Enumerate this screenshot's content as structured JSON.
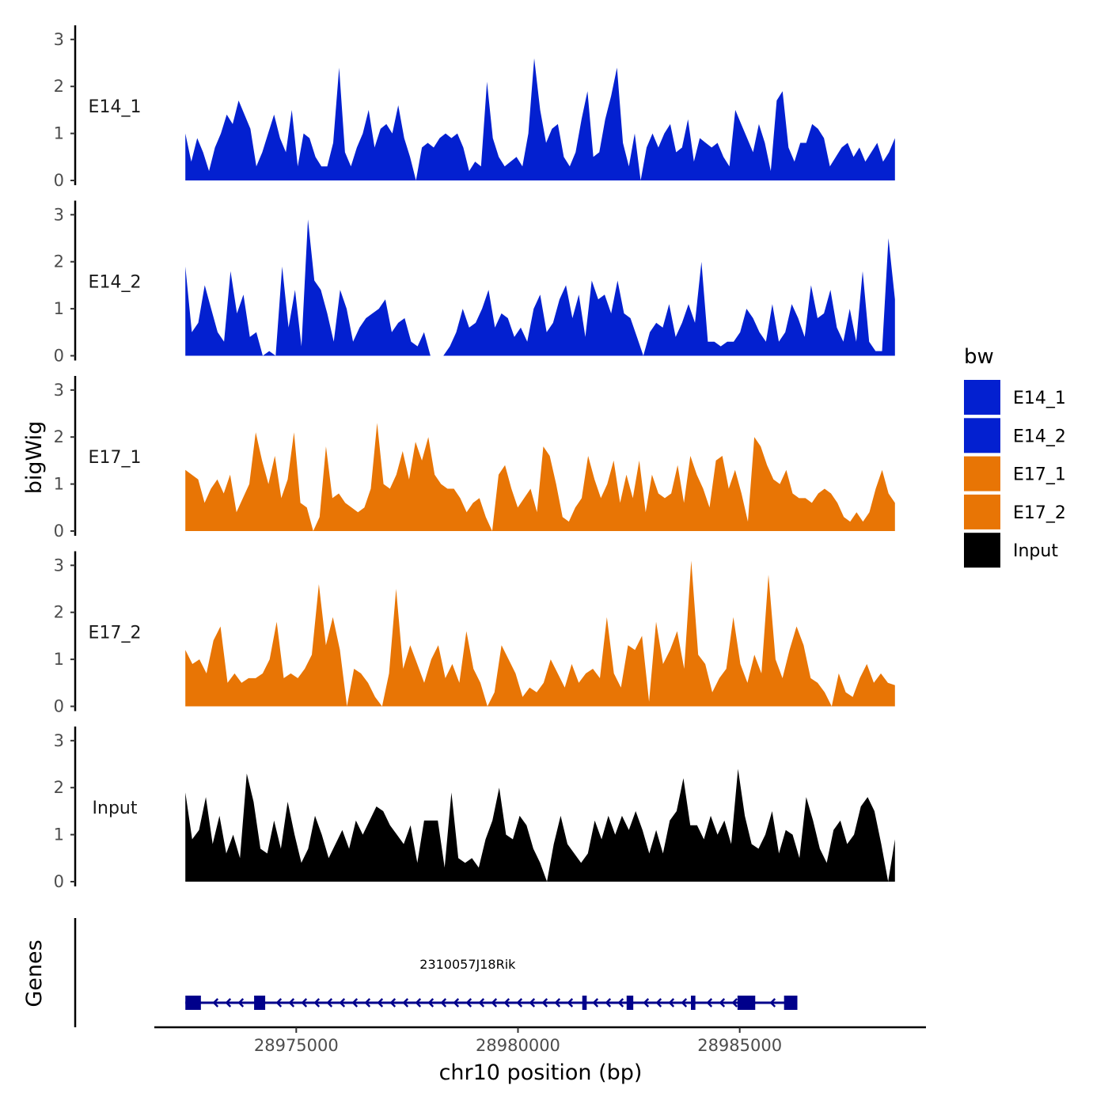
{
  "chart_data": {
    "type": "area",
    "ylabel": "bigWig",
    "xlabel": "chr10 position (bp)",
    "genes_label": "Genes",
    "ylim": [
      0,
      3.3
    ],
    "yticks": [
      0,
      1,
      2,
      3
    ],
    "xlim": [
      28971800,
      28989200
    ],
    "xticks": [
      28975000,
      28980000,
      28985000
    ],
    "xtick_labels": [
      "28975000",
      "28980000",
      "28985000"
    ],
    "series_x_range": [
      28972500,
      28988500
    ],
    "legend": {
      "title": "bw",
      "entries": [
        {
          "label": "E14_1",
          "color": "#0320d0"
        },
        {
          "label": "E14_2",
          "color": "#0320d0"
        },
        {
          "label": "E17_1",
          "color": "#e87505"
        },
        {
          "label": "E17_2",
          "color": "#e87505"
        },
        {
          "label": "Input",
          "color": "#000000"
        }
      ]
    },
    "series": [
      {
        "name": "E14_1",
        "color": "#0320d0",
        "values": [
          1.0,
          0.4,
          0.9,
          0.6,
          0.2,
          0.7,
          1.0,
          1.4,
          1.2,
          1.7,
          1.4,
          1.1,
          0.3,
          0.6,
          1.0,
          1.4,
          0.9,
          0.6,
          1.5,
          0.3,
          1.0,
          0.9,
          0.5,
          0.3,
          0.3,
          0.8,
          2.4,
          0.6,
          0.3,
          0.7,
          1.0,
          1.5,
          0.7,
          1.1,
          1.2,
          1.0,
          1.6,
          0.9,
          0.5,
          0.0,
          0.7,
          0.8,
          0.7,
          0.9,
          1.0,
          0.9,
          1.0,
          0.7,
          0.2,
          0.4,
          0.3,
          2.1,
          0.9,
          0.5,
          0.3,
          0.4,
          0.5,
          0.3,
          1.0,
          2.6,
          1.5,
          0.8,
          1.1,
          1.2,
          0.5,
          0.3,
          0.6,
          1.3,
          1.9,
          0.5,
          0.6,
          1.3,
          1.8,
          2.4,
          0.8,
          0.3,
          1.0,
          0.0,
          0.7,
          1.0,
          0.7,
          1.0,
          1.2,
          0.6,
          0.7,
          1.3,
          0.4,
          0.9,
          0.8,
          0.7,
          0.8,
          0.5,
          0.3,
          1.5,
          1.2,
          0.9,
          0.6,
          1.2,
          0.8,
          0.2,
          1.7,
          1.9,
          0.7,
          0.4,
          0.8,
          0.8,
          1.2,
          1.1,
          0.9,
          0.3,
          0.5,
          0.7,
          0.8,
          0.5,
          0.7,
          0.4,
          0.6,
          0.8,
          0.4,
          0.6,
          0.9
        ]
      },
      {
        "name": "E14_2",
        "color": "#0320d0",
        "values": [
          1.9,
          0.5,
          0.7,
          1.5,
          1.0,
          0.5,
          0.3,
          1.8,
          0.9,
          1.3,
          0.4,
          0.5,
          0.0,
          0.1,
          0.0,
          1.9,
          0.6,
          1.4,
          0.2,
          2.9,
          1.6,
          1.4,
          0.9,
          0.3,
          1.4,
          1.0,
          0.3,
          0.6,
          0.8,
          0.9,
          1.0,
          1.2,
          0.5,
          0.7,
          0.8,
          0.3,
          0.2,
          0.5,
          0.0,
          0.0,
          0.0,
          0.2,
          0.5,
          1.0,
          0.6,
          0.7,
          1.0,
          1.4,
          0.6,
          0.9,
          0.8,
          0.4,
          0.6,
          0.3,
          1.0,
          1.3,
          0.5,
          0.7,
          1.2,
          1.5,
          0.8,
          1.3,
          0.4,
          1.6,
          1.2,
          1.3,
          0.9,
          1.6,
          0.9,
          0.8,
          0.4,
          0.0,
          0.5,
          0.7,
          0.6,
          1.1,
          0.4,
          0.7,
          1.1,
          0.7,
          2.0,
          0.3,
          0.3,
          0.2,
          0.3,
          0.3,
          0.5,
          1.0,
          0.8,
          0.5,
          0.3,
          1.1,
          0.3,
          0.5,
          1.1,
          0.8,
          0.4,
          1.5,
          0.8,
          0.9,
          1.4,
          0.6,
          0.3,
          1.0,
          0.3,
          1.8,
          0.3,
          0.1,
          0.1,
          2.5,
          1.2
        ]
      },
      {
        "name": "E17_1",
        "color": "#e87505",
        "values": [
          1.3,
          1.2,
          1.1,
          0.6,
          0.9,
          1.1,
          0.8,
          1.2,
          0.4,
          0.7,
          1.0,
          2.1,
          1.5,
          1.0,
          1.6,
          0.7,
          1.1,
          2.1,
          0.6,
          0.5,
          0.0,
          0.3,
          1.8,
          0.7,
          0.8,
          0.6,
          0.5,
          0.4,
          0.5,
          0.9,
          2.3,
          1.0,
          0.9,
          1.2,
          1.7,
          1.1,
          1.9,
          1.5,
          2.0,
          1.2,
          1.0,
          0.9,
          0.9,
          0.7,
          0.4,
          0.6,
          0.7,
          0.3,
          0.0,
          1.2,
          1.4,
          0.9,
          0.5,
          0.7,
          0.9,
          0.4,
          1.8,
          1.6,
          1.0,
          0.3,
          0.2,
          0.5,
          0.7,
          1.6,
          1.1,
          0.7,
          1.0,
          1.5,
          0.6,
          1.2,
          0.7,
          1.5,
          0.4,
          1.2,
          0.8,
          0.7,
          0.8,
          1.4,
          0.6,
          1.6,
          1.2,
          0.9,
          0.5,
          1.5,
          1.6,
          0.9,
          1.3,
          0.8,
          0.2,
          2.0,
          1.8,
          1.4,
          1.1,
          1.0,
          1.3,
          0.8,
          0.7,
          0.7,
          0.6,
          0.8,
          0.9,
          0.8,
          0.6,
          0.3,
          0.2,
          0.4,
          0.2,
          0.4,
          0.9,
          1.3,
          0.8,
          0.6
        ]
      },
      {
        "name": "E17_2",
        "color": "#e87505",
        "values": [
          1.2,
          0.9,
          1.0,
          0.7,
          1.4,
          1.7,
          0.5,
          0.7,
          0.5,
          0.6,
          0.6,
          0.7,
          1.0,
          1.8,
          0.6,
          0.7,
          0.6,
          0.8,
          1.1,
          2.6,
          1.3,
          1.9,
          1.2,
          0.0,
          0.8,
          0.7,
          0.5,
          0.2,
          0.0,
          0.7,
          2.5,
          0.8,
          1.3,
          0.9,
          0.5,
          1.0,
          1.3,
          0.6,
          0.9,
          0.5,
          1.6,
          0.8,
          0.5,
          0.0,
          0.3,
          1.3,
          1.0,
          0.7,
          0.2,
          0.4,
          0.3,
          0.5,
          1.0,
          0.7,
          0.4,
          0.9,
          0.5,
          0.7,
          0.8,
          0.6,
          1.9,
          0.7,
          0.4,
          1.3,
          1.2,
          1.5,
          0.1,
          1.8,
          0.9,
          1.2,
          1.6,
          0.8,
          3.1,
          1.1,
          0.9,
          0.3,
          0.6,
          0.8,
          1.9,
          0.9,
          0.5,
          1.1,
          0.7,
          2.8,
          1.0,
          0.6,
          1.2,
          1.7,
          1.3,
          0.6,
          0.5,
          0.3,
          0.0,
          0.7,
          0.3,
          0.2,
          0.6,
          0.9,
          0.5,
          0.7,
          0.5,
          0.45
        ]
      },
      {
        "name": "Input",
        "color": "#000000",
        "values": [
          1.9,
          0.9,
          1.1,
          1.8,
          0.8,
          1.4,
          0.6,
          1.0,
          0.5,
          2.3,
          1.7,
          0.7,
          0.6,
          1.3,
          0.7,
          1.7,
          1.0,
          0.4,
          0.7,
          1.4,
          1.0,
          0.5,
          0.8,
          1.1,
          0.7,
          1.3,
          1.0,
          1.3,
          1.6,
          1.5,
          1.2,
          1.0,
          0.8,
          1.2,
          0.4,
          1.3,
          1.3,
          1.3,
          0.3,
          1.9,
          0.5,
          0.4,
          0.5,
          0.3,
          0.9,
          1.3,
          2.0,
          1.0,
          0.9,
          1.4,
          1.2,
          0.7,
          0.4,
          0.0,
          0.8,
          1.4,
          0.8,
          0.6,
          0.4,
          0.6,
          1.3,
          0.9,
          1.4,
          1.0,
          1.4,
          1.1,
          1.5,
          1.1,
          0.6,
          1.1,
          0.6,
          1.3,
          1.5,
          2.2,
          1.2,
          1.2,
          0.9,
          1.4,
          1.0,
          1.3,
          0.8,
          2.4,
          1.4,
          0.8,
          0.7,
          1.0,
          1.5,
          0.6,
          1.1,
          1.0,
          0.5,
          1.8,
          1.3,
          0.7,
          0.4,
          1.1,
          1.3,
          0.8,
          1.0,
          1.6,
          1.8,
          1.5,
          0.8,
          0.0,
          0.9
        ]
      }
    ],
    "gene": {
      "name": "2310057J18Rik",
      "strand": "-",
      "color": "#00008b",
      "start": 28972500,
      "end": 28986300,
      "exons": [
        [
          28972500,
          28972850
        ],
        [
          28974050,
          28974300
        ],
        [
          28981450,
          28981550
        ],
        [
          28982450,
          28982600
        ],
        [
          28983900,
          28984000
        ],
        [
          28984950,
          28985350
        ],
        [
          28986000,
          28986300
        ]
      ]
    }
  }
}
